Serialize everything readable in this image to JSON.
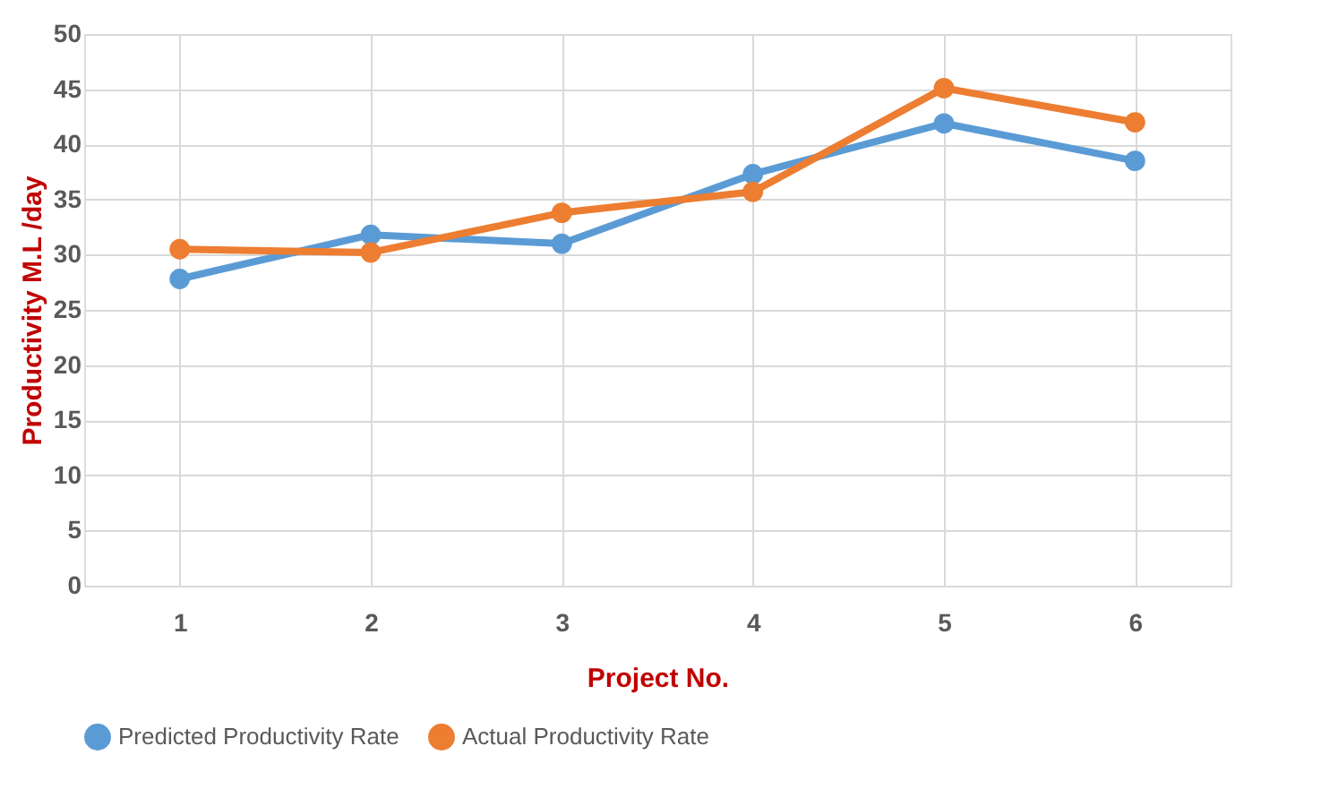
{
  "chart_data": {
    "type": "line",
    "xlabel": "Project No.",
    "ylabel": "Productivity M.L /day",
    "categories": [
      "1",
      "2",
      "3",
      "4",
      "5",
      "6"
    ],
    "series": [
      {
        "name": "Predicted Productivity Rate",
        "color": "#5b9bd5",
        "values": [
          27.8,
          31.8,
          31.0,
          37.3,
          41.9,
          38.5
        ]
      },
      {
        "name": "Actual Productivity Rate",
        "color": "#ed7d31",
        "values": [
          30.5,
          30.2,
          33.8,
          35.7,
          45.1,
          42.0
        ]
      }
    ],
    "ylim": [
      0,
      50
    ],
    "yticks": [
      0,
      5,
      10,
      15,
      20,
      25,
      30,
      35,
      40,
      45,
      50
    ],
    "grid": true,
    "legend": "bottom",
    "marker": "circle",
    "line_style": "solid"
  }
}
